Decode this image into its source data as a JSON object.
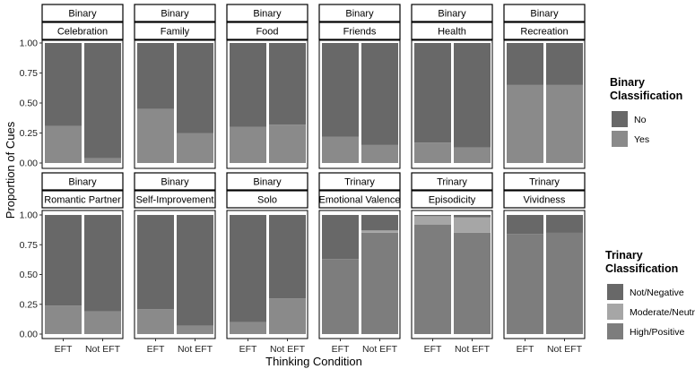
{
  "chart_data": {
    "type": "bar",
    "xlabel": "Thinking Condition",
    "ylabel": "Proportion of Cues",
    "ylim": [
      0,
      1
    ],
    "yticks": [
      "0.00",
      "0.25",
      "0.50",
      "0.75",
      "1.00"
    ],
    "categories": [
      "EFT",
      "Not EFT"
    ],
    "panels": [
      {
        "type_label": "Binary",
        "cue_label": "Celebration",
        "stack": [
          {
            "name": "Yes",
            "values": [
              0.31,
              0.04
            ]
          },
          {
            "name": "No",
            "values": [
              0.69,
              0.96
            ]
          }
        ]
      },
      {
        "type_label": "Binary",
        "cue_label": "Family",
        "stack": [
          {
            "name": "Yes",
            "values": [
              0.45,
              0.25
            ]
          },
          {
            "name": "No",
            "values": [
              0.55,
              0.75
            ]
          }
        ]
      },
      {
        "type_label": "Binary",
        "cue_label": "Food",
        "stack": [
          {
            "name": "Yes",
            "values": [
              0.3,
              0.32
            ]
          },
          {
            "name": "No",
            "values": [
              0.7,
              0.68
            ]
          }
        ]
      },
      {
        "type_label": "Binary",
        "cue_label": "Friends",
        "stack": [
          {
            "name": "Yes",
            "values": [
              0.22,
              0.15
            ]
          },
          {
            "name": "No",
            "values": [
              0.78,
              0.85
            ]
          }
        ]
      },
      {
        "type_label": "Binary",
        "cue_label": "Health",
        "stack": [
          {
            "name": "Yes",
            "values": [
              0.17,
              0.13
            ]
          },
          {
            "name": "No",
            "values": [
              0.83,
              0.87
            ]
          }
        ]
      },
      {
        "type_label": "Binary",
        "cue_label": "Recreation",
        "stack": [
          {
            "name": "Yes",
            "values": [
              0.65,
              0.65
            ]
          },
          {
            "name": "No",
            "values": [
              0.35,
              0.35
            ]
          }
        ]
      },
      {
        "type_label": "Binary",
        "cue_label": "Romantic Partner",
        "stack": [
          {
            "name": "Yes",
            "values": [
              0.24,
              0.19
            ]
          },
          {
            "name": "No",
            "values": [
              0.76,
              0.81
            ]
          }
        ]
      },
      {
        "type_label": "Binary",
        "cue_label": "Self-Improvement",
        "stack": [
          {
            "name": "Yes",
            "values": [
              0.21,
              0.07
            ]
          },
          {
            "name": "No",
            "values": [
              0.79,
              0.93
            ]
          }
        ]
      },
      {
        "type_label": "Binary",
        "cue_label": "Solo",
        "stack": [
          {
            "name": "Yes",
            "values": [
              0.1,
              0.3
            ]
          },
          {
            "name": "No",
            "values": [
              0.9,
              0.7
            ]
          }
        ]
      },
      {
        "type_label": "Trinary",
        "cue_label": "Emotional Valence",
        "stack": [
          {
            "name": "High/Positive",
            "values": [
              0.63,
              0.85
            ]
          },
          {
            "name": "Moderate/Neutral",
            "values": [
              0.0,
              0.02
            ]
          },
          {
            "name": "Not/Negative",
            "values": [
              0.37,
              0.13
            ]
          }
        ]
      },
      {
        "type_label": "Trinary",
        "cue_label": "Episodicity",
        "stack": [
          {
            "name": "High/Positive",
            "values": [
              0.92,
              0.85
            ]
          },
          {
            "name": "Moderate/Neutral",
            "values": [
              0.07,
              0.13
            ]
          },
          {
            "name": "Not/Negative",
            "values": [
              0.01,
              0.02
            ]
          }
        ]
      },
      {
        "type_label": "Trinary",
        "cue_label": "Vividness",
        "stack": [
          {
            "name": "High/Positive",
            "values": [
              0.84,
              0.85
            ]
          },
          {
            "name": "Moderate/Neutral",
            "values": [
              0.0,
              0.0
            ]
          },
          {
            "name": "Not/Negative",
            "values": [
              0.16,
              0.15
            ]
          }
        ]
      }
    ],
    "legends": [
      {
        "title_lines": [
          "Binary",
          "Classification"
        ],
        "entries": [
          {
            "label": "No",
            "color": "#686868"
          },
          {
            "label": "Yes",
            "color": "#8a8a8a"
          }
        ]
      },
      {
        "title_lines": [
          "Trinary",
          "Classification"
        ],
        "entries": [
          {
            "label": "Not/Negative",
            "color": "#686868"
          },
          {
            "label": "Moderate/Neutral",
            "color": "#a6a6a6"
          },
          {
            "label": "High/Positive",
            "color": "#7d7d7d"
          }
        ]
      }
    ],
    "series_colors": {
      "No": "#686868",
      "Yes": "#8a8a8a",
      "Not/Negative": "#686868",
      "Moderate/Neutral": "#a6a6a6",
      "High/Positive": "#7d7d7d"
    },
    "grid": false,
    "legend_position": "right"
  }
}
